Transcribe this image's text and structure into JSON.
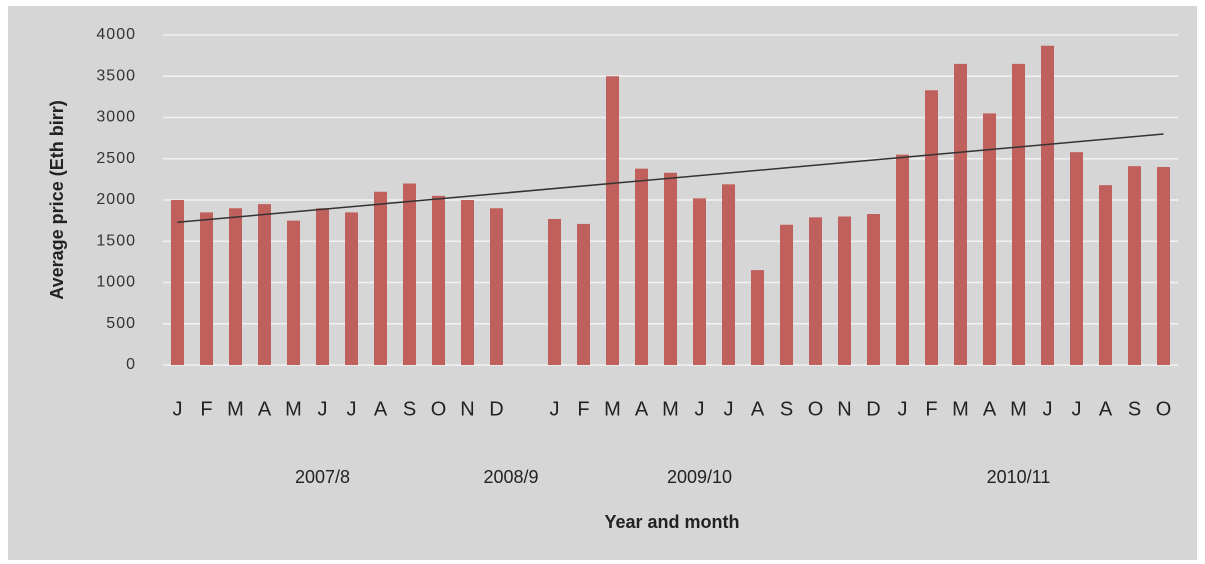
{
  "chart_data": {
    "type": "bar",
    "x_label": "Year and month",
    "y_label": "Average price (Eth birr)",
    "categories": [
      "J",
      "F",
      "M",
      "A",
      "M",
      "J",
      "J",
      "A",
      "S",
      "O",
      "N",
      "D",
      null,
      "J",
      "F",
      "M",
      "A",
      "M",
      "J",
      "J",
      "A",
      "S",
      "O",
      "N",
      "D",
      "J",
      "F",
      "M",
      "A",
      "M",
      "J",
      "J",
      "A",
      "S",
      "O"
    ],
    "values": [
      2000,
      1850,
      1900,
      1950,
      1750,
      1900,
      1850,
      2100,
      2200,
      2050,
      2000,
      1900,
      null,
      1770,
      1710,
      3500,
      2380,
      2330,
      2020,
      2190,
      1150,
      1700,
      1790,
      1800,
      1830,
      2550,
      3330,
      3650,
      3050,
      3650,
      3870,
      2580,
      2180,
      2410,
      2400
    ],
    "color": "#c0605d",
    "groups": [
      "2007/8",
      "2008/9",
      "2009/10",
      "2010/11"
    ],
    "trendline": {
      "start": 1730,
      "end": 2800,
      "color": "#333333"
    },
    "ylim": [
      0,
      4000
    ],
    "yticks": [
      0,
      500,
      1000,
      1500,
      2000,
      2500,
      3000,
      3500,
      4000
    ],
    "grid": true
  }
}
